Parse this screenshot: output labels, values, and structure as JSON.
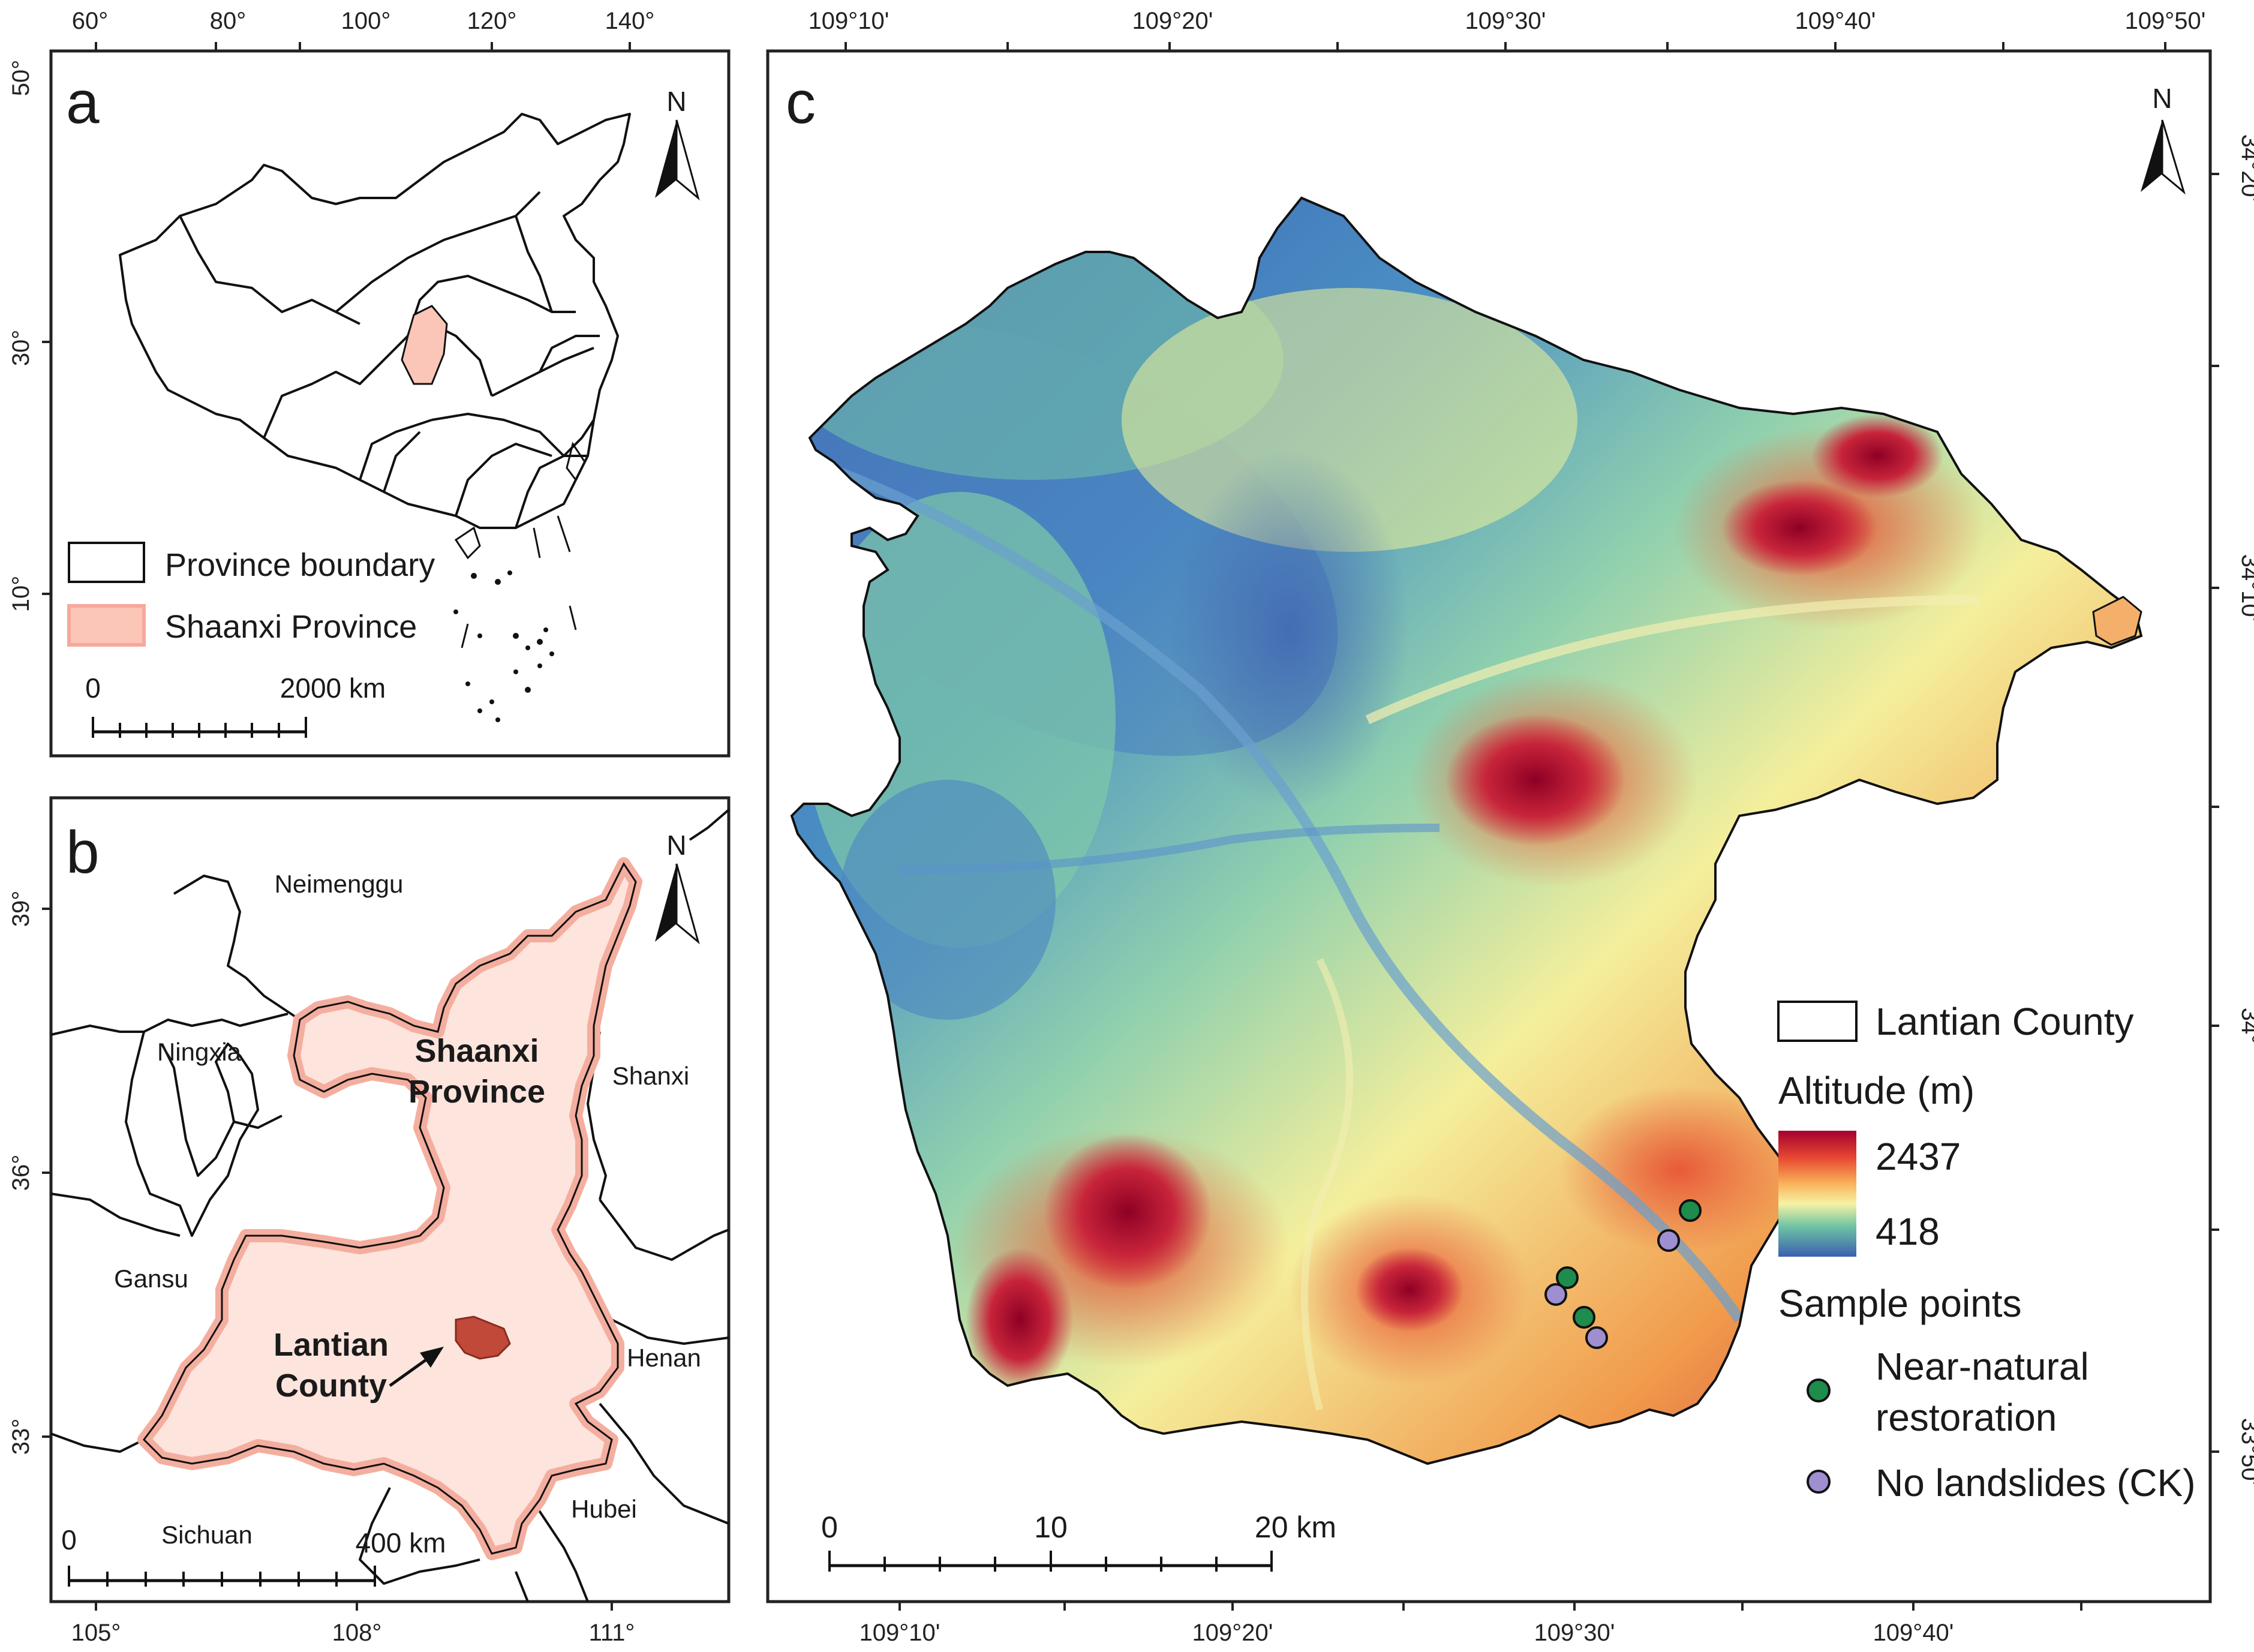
{
  "panel_a": {
    "letter": "a",
    "top_ticks": [
      "60°",
      "80°",
      "100°",
      "120°",
      "140°"
    ],
    "left_ticks": [
      "50°",
      "30°",
      "10°"
    ],
    "north": "N",
    "legend": {
      "boundary": "Province boundary",
      "shaanxi": "Shaanxi Province"
    },
    "scale": {
      "start": "0",
      "end": "2000 km"
    }
  },
  "panel_b": {
    "letter": "b",
    "bottom_ticks": [
      "105°",
      "108°",
      "111°"
    ],
    "left_ticks": [
      "39°",
      "36°",
      "33°"
    ],
    "north": "N",
    "provinces": {
      "neimenggu": "Neimenggu",
      "ningxia": "Ningxia",
      "shanxi": "Shanxi",
      "gansu": "Gansu",
      "henan": "Henan",
      "sichuan": "Sichuan",
      "hubei": "Hubei"
    },
    "shaanxi_line1": "Shaanxi",
    "shaanxi_line2": "Province",
    "lantian_line1": "Lantian",
    "lantian_line2": "County",
    "scale": {
      "start": "0",
      "end": "400 km"
    }
  },
  "panel_c": {
    "letter": "c",
    "top_ticks": [
      "109°10'",
      "109°20'",
      "109°30'",
      "109°40'",
      "109°50'"
    ],
    "bottom_ticks": [
      "109°10'",
      "109°20'",
      "109°30'",
      "109°40'"
    ],
    "right_ticks": [
      "34°20'",
      "34°10'",
      "34°",
      "33°50'"
    ],
    "north": "N",
    "legend": {
      "county": "Lantian County",
      "altitude_title": "Altitude (m)",
      "alt_max": "2437",
      "alt_min": "418",
      "samples_title": "Sample points",
      "near_natural_1": "Near-natural",
      "near_natural_2": "restoration",
      "no_landslides": "No landslides (CK)"
    },
    "scale": {
      "zero": "0",
      "mid": "10",
      "end": "20 km"
    },
    "colors": {
      "near_natural": "#1e8c4a",
      "no_landslides": "#a08fd0",
      "shaanxi_fill": "#fde4dd",
      "lantian_fill": "#c0493a"
    }
  }
}
